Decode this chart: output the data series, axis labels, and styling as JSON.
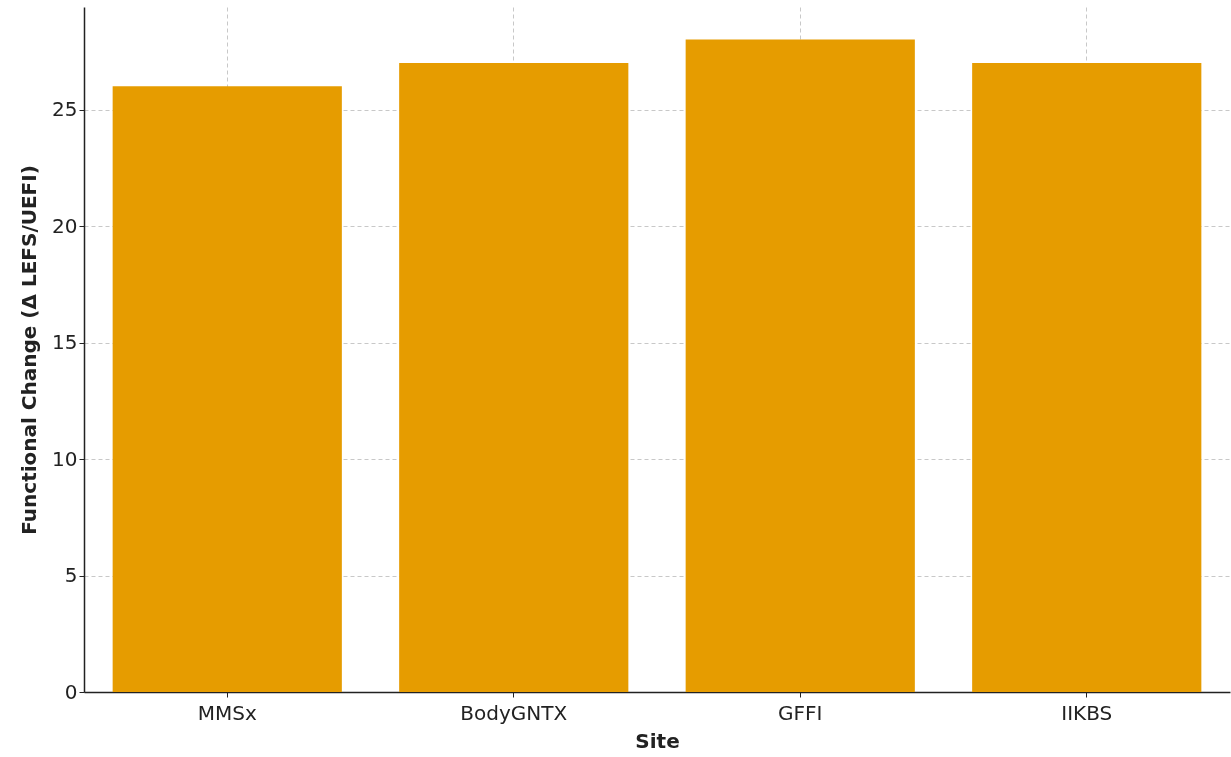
{
  "chart_data": {
    "type": "bar",
    "xlabel": "Site",
    "ylabel": "Functional Change (Δ LEFS/UEFI)",
    "categories": [
      "MMSx",
      "BodyGNTX",
      "GFFI",
      "IIKBS"
    ],
    "values": [
      26,
      27,
      28,
      27
    ],
    "color": "#e69c00",
    "ylim": [
      0,
      29.4
    ],
    "yticks": [
      0,
      5,
      10,
      15,
      20,
      25
    ],
    "grid": true
  }
}
